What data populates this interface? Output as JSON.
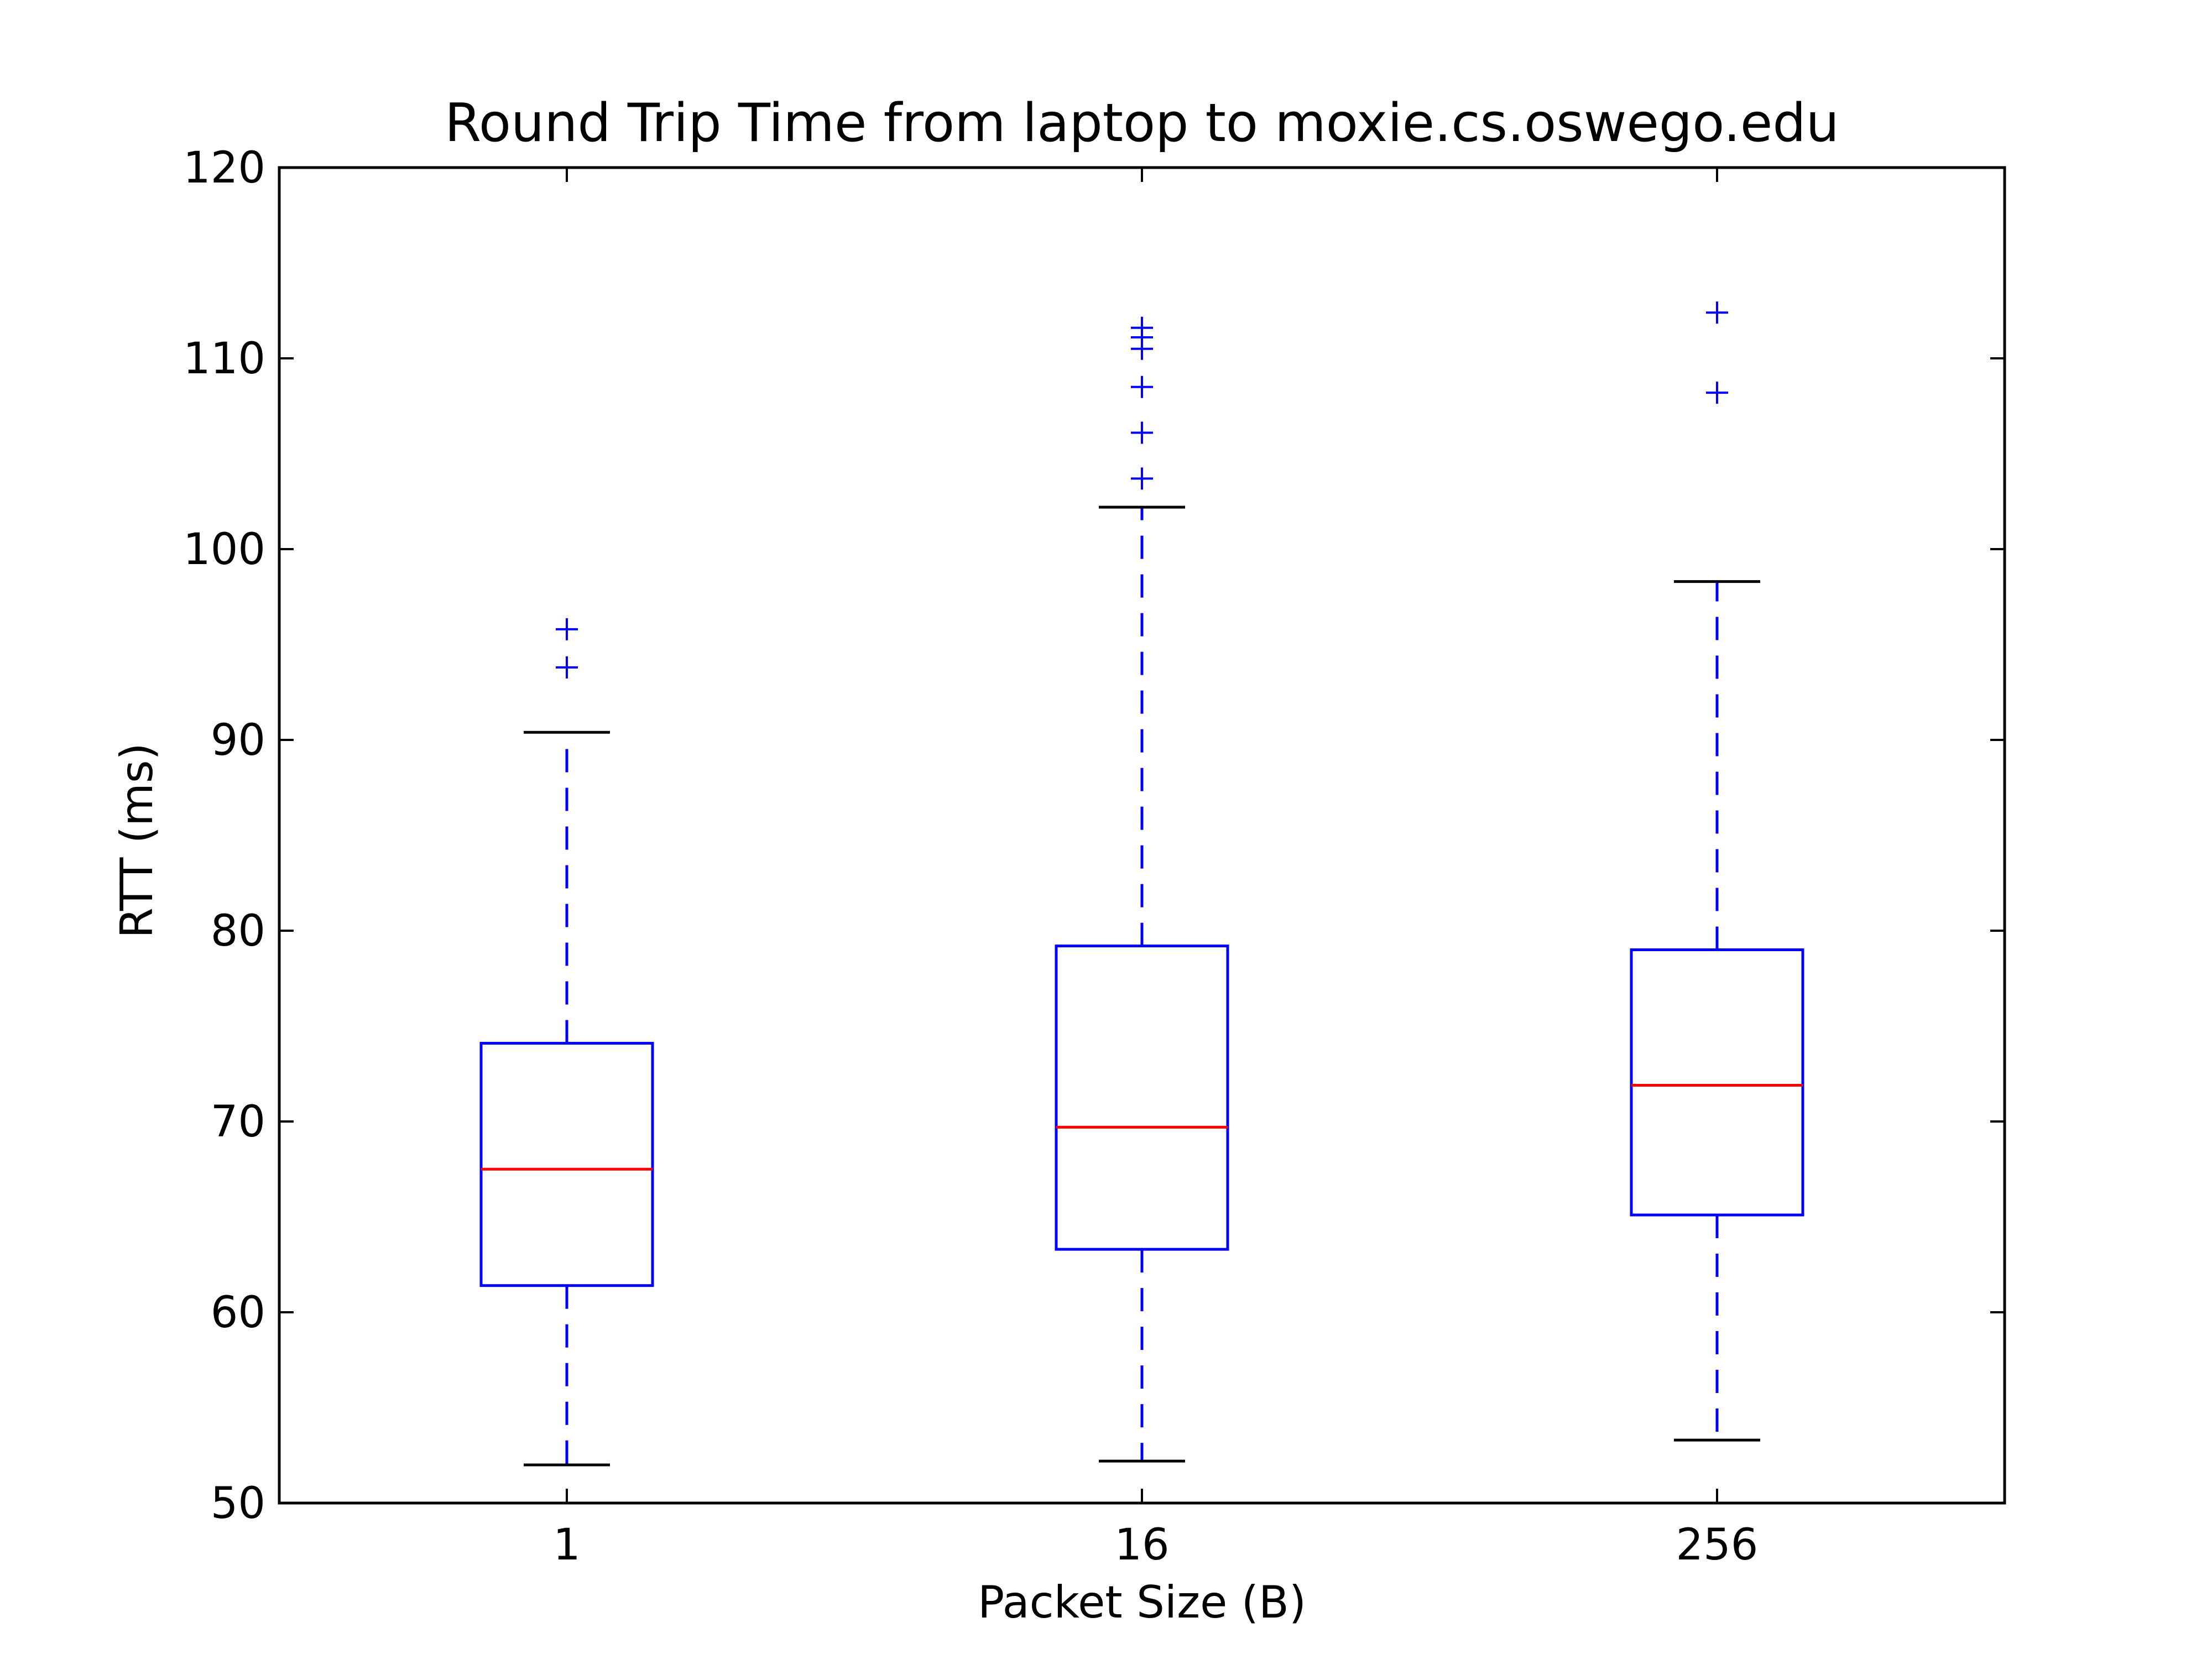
{
  "chart_data": {
    "type": "box",
    "title": "Round Trip Time from laptop to moxie.cs.oswego.edu",
    "xlabel": "Packet Size (B)",
    "ylabel": "RTT (ms)",
    "ylim": [
      50,
      120
    ],
    "yticks": [
      "50",
      "60",
      "70",
      "80",
      "90",
      "100",
      "110",
      "120"
    ],
    "grid": false,
    "categories": [
      "1",
      "16",
      "256"
    ],
    "boxes": [
      {
        "category": "1",
        "whisker_low": 52.0,
        "q1": 61.4,
        "median": 67.5,
        "q3": 74.1,
        "whisker_high": 90.4,
        "outliers": [
          93.8,
          95.8
        ]
      },
      {
        "category": "16",
        "whisker_low": 52.2,
        "q1": 63.3,
        "median": 69.7,
        "q3": 79.2,
        "whisker_high": 102.2,
        "outliers": [
          103.7,
          106.1,
          108.5,
          110.5,
          111.1,
          111.6
        ]
      },
      {
        "category": "256",
        "whisker_low": 53.3,
        "q1": 65.1,
        "median": 71.9,
        "q3": 79.0,
        "whisker_high": 98.3,
        "outliers": [
          108.2,
          112.4
        ]
      }
    ],
    "colors": {
      "box": "#0000ff",
      "whisker": "#0000ff",
      "cap": "#000000",
      "median": "#ff0000",
      "outlier": "#0000ff",
      "axes": "#000000"
    }
  }
}
